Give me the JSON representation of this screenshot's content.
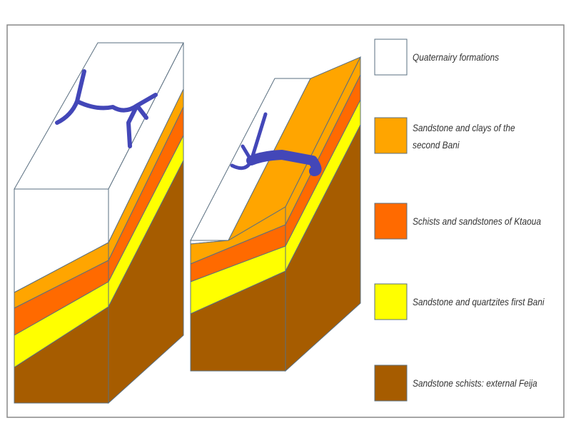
{
  "legend": {
    "items": [
      {
        "label": "Quaternairy formations",
        "color": "#ffffff"
      },
      {
        "label": "Sandstone and clays of the second Bani",
        "color": "#ffa500"
      },
      {
        "label": "Schists and sandstones of Ktaoua",
        "color": "#ff6a00"
      },
      {
        "label": "Sandstone and quartzites first Bani",
        "color": "#ffff00"
      },
      {
        "label": "Sandstone schists: external Feija",
        "color": "#a65c00"
      }
    ]
  }
}
